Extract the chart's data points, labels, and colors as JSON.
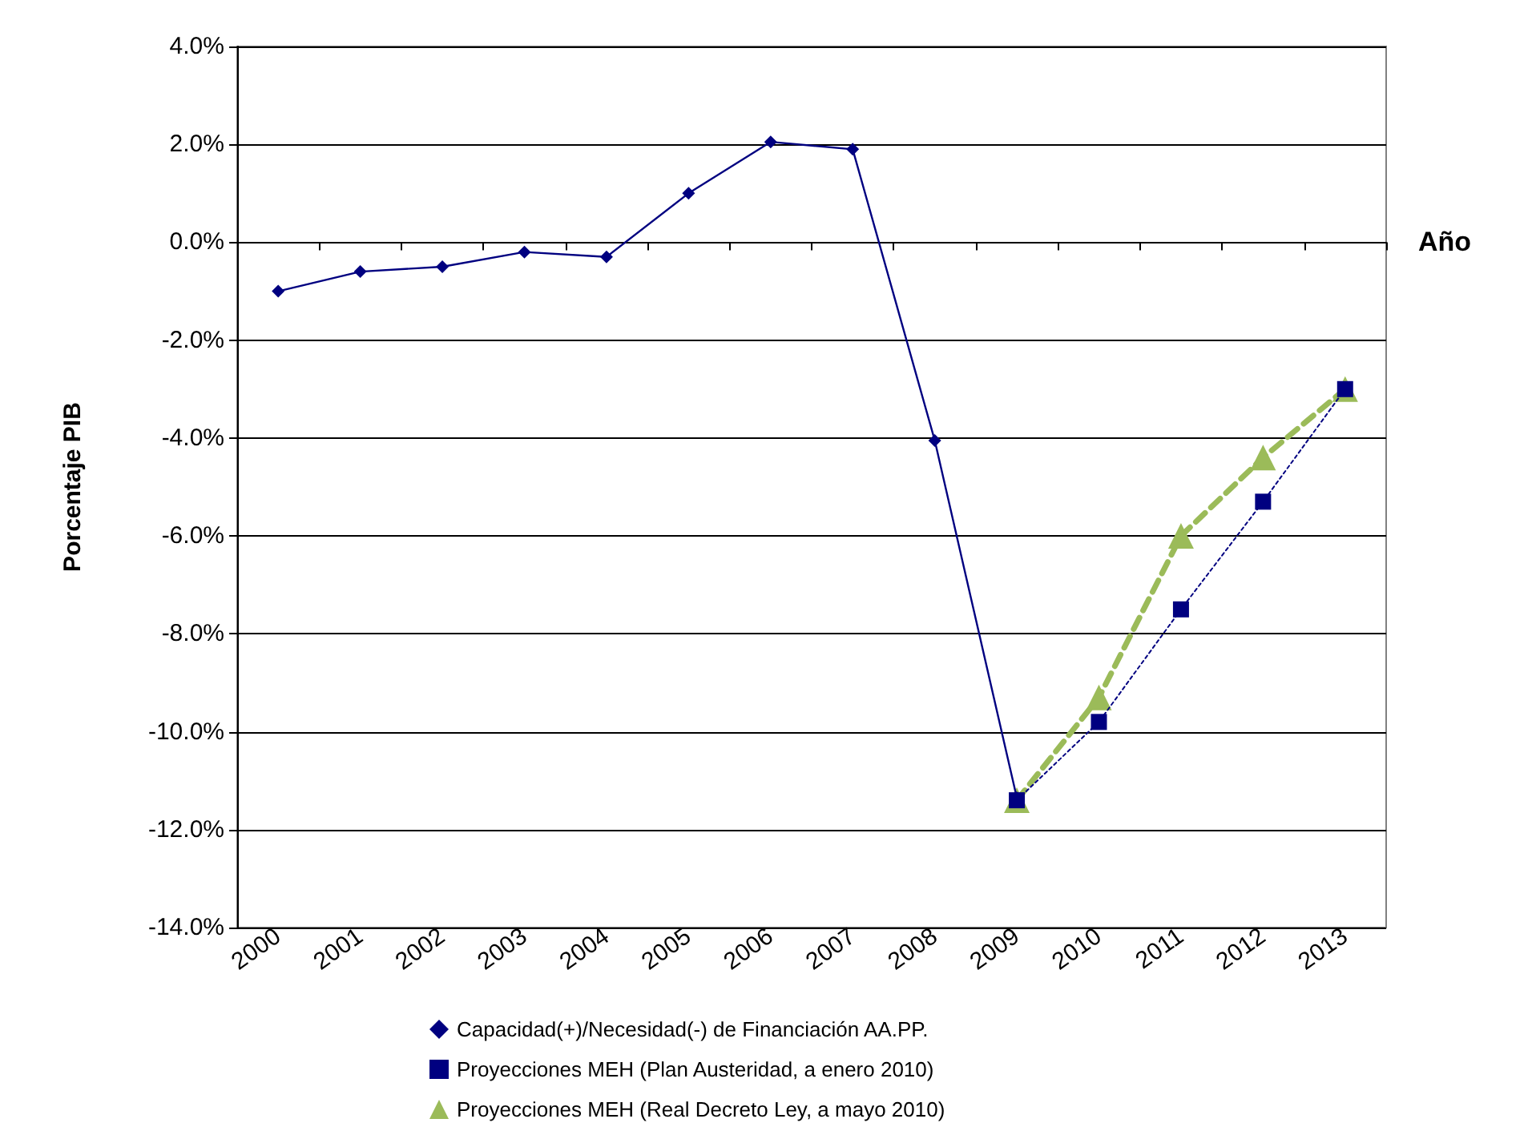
{
  "chart_data": {
    "type": "line",
    "xlabel": "Año",
    "ylabel": "Porcentaje PIB",
    "categories": [
      "2000",
      "2001",
      "2002",
      "2003",
      "2004",
      "2005",
      "2006",
      "2007",
      "2008",
      "2009",
      "2010",
      "2011",
      "2012",
      "2013"
    ],
    "series": [
      {
        "name": "Capacidad(+)/Necesidad(-) de Financiación AA.PP.",
        "color": "#000080",
        "marker": "diamond",
        "line_style": "solid",
        "values": [
          -1.0,
          -0.6,
          -0.5,
          -0.2,
          -0.3,
          1.0,
          2.05,
          1.9,
          -4.05,
          -11.35,
          null,
          null,
          null,
          null
        ]
      },
      {
        "name": "Proyecciones MEH (Plan Austeridad, a enero 2010)",
        "color": "#000080",
        "marker": "square",
        "line_style": "dotted",
        "values": [
          null,
          null,
          null,
          null,
          null,
          null,
          null,
          null,
          null,
          -11.4,
          -9.8,
          -7.5,
          -5.3,
          -3.0
        ]
      },
      {
        "name": "Proyecciones MEH (Real Decreto Ley, a mayo 2010)",
        "color": "#9bbb59",
        "marker": "triangle",
        "line_style": "dashed",
        "values": [
          null,
          null,
          null,
          null,
          null,
          null,
          null,
          null,
          null,
          -11.4,
          -9.3,
          -6.0,
          -4.4,
          -3.0
        ]
      }
    ],
    "ylim": [
      -14,
      4
    ],
    "yticks": [
      {
        "value": -14,
        "label": "-14.0%"
      },
      {
        "value": -12,
        "label": "-12.0%"
      },
      {
        "value": -10,
        "label": "-10.0%"
      },
      {
        "value": -8,
        "label": "-8.0%"
      },
      {
        "value": -6,
        "label": "-6.0%"
      },
      {
        "value": -4,
        "label": "-4.0%"
      },
      {
        "value": -2,
        "label": "-2.0%"
      },
      {
        "value": 0,
        "label": "0.0%"
      },
      {
        "value": 2,
        "label": "2.0%"
      },
      {
        "value": 4,
        "label": "4.0%"
      }
    ],
    "grid": "y",
    "legend": "bottom"
  }
}
